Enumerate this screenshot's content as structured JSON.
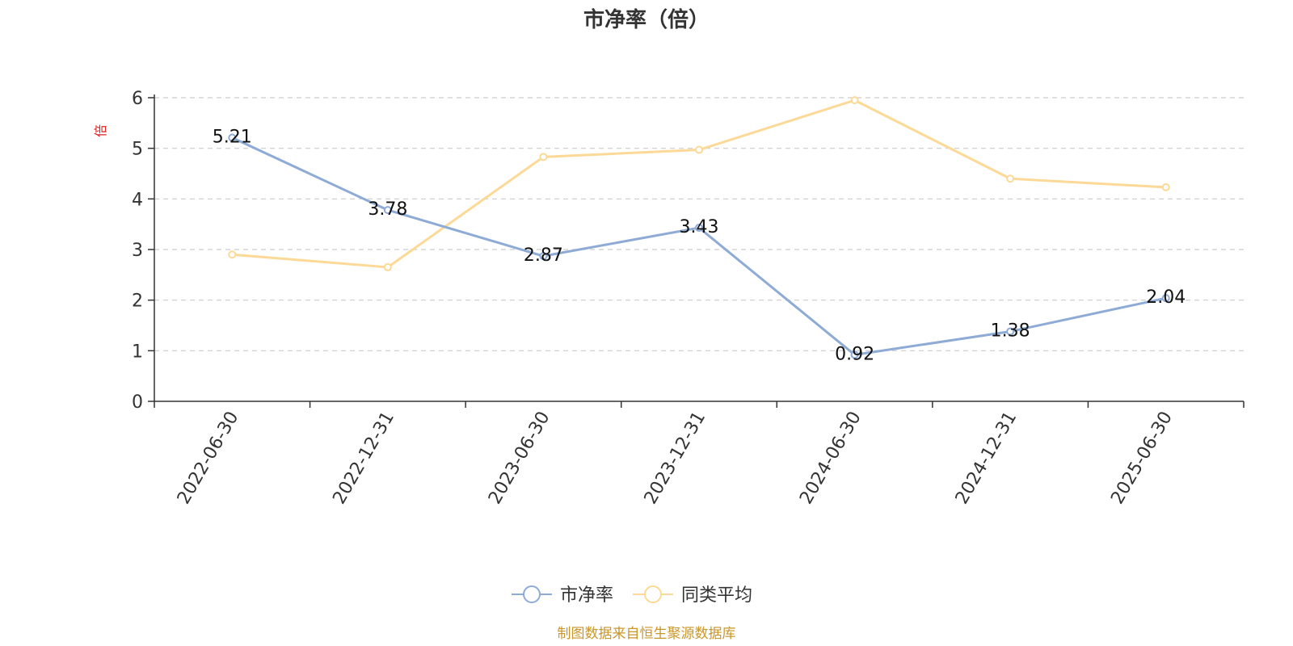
{
  "chart_data": {
    "type": "line",
    "title": "市净率（倍）",
    "ylabel": "倍",
    "xlabel": "",
    "categories": [
      "2022-06-30",
      "2022-12-31",
      "2023-06-30",
      "2023-12-31",
      "2024-06-30",
      "2024-12-31",
      "2025-06-30"
    ],
    "ylim": [
      0,
      6
    ],
    "yticks": [
      0,
      1,
      2,
      3,
      4,
      5,
      6
    ],
    "grid": true,
    "legend_position": "bottom-center",
    "series": [
      {
        "name": "市净率",
        "color": "#8eabd6",
        "show_labels": true,
        "values": [
          5.21,
          3.78,
          2.87,
          3.43,
          0.92,
          1.38,
          2.04
        ],
        "labels": [
          "5.21",
          "3.78",
          "2.87",
          "3.43",
          "0.92",
          "1.38",
          "2.04"
        ]
      },
      {
        "name": "同类平均",
        "color": "#fcd996",
        "show_labels": false,
        "values": [
          2.9,
          2.65,
          4.83,
          4.97,
          5.95,
          4.4,
          4.23
        ]
      }
    ],
    "source_note": "制图数据来自恒生聚源数据库"
  }
}
